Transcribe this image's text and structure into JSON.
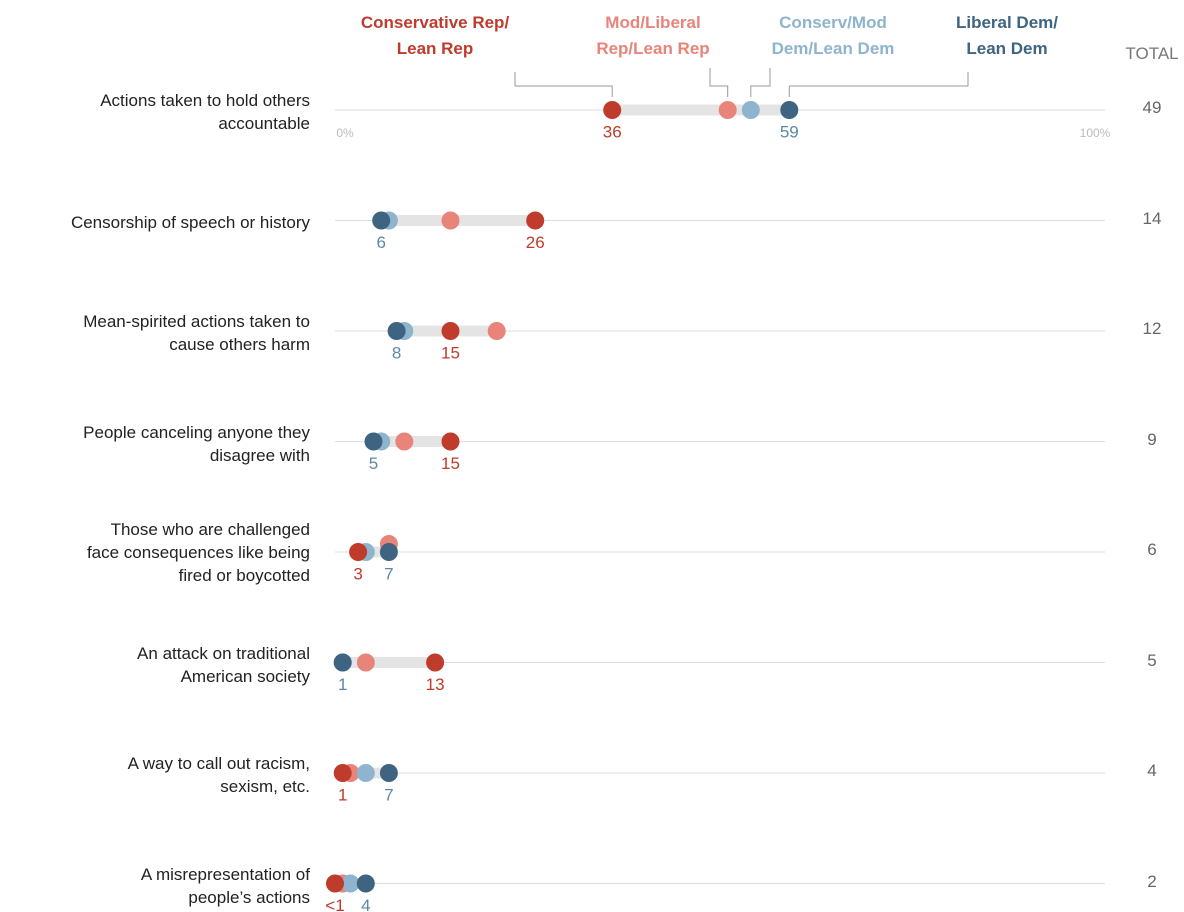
{
  "chart_data": {
    "type": "dot",
    "categories": [
      "Actions taken to hold others\naccountable",
      "Censorship of speech or history",
      "Mean-spirited actions taken to\ncause others harm",
      "People canceling anyone they\ndisagree with",
      "Those who are challenged\nface consequences like being\nfired or boycotted",
      "An attack on traditional\nAmerican society",
      "A way to call out racism,\nsexism, etc.",
      "A misrepresentation of\npeople’s actions"
    ],
    "series": [
      {
        "name": "Conservative Rep/\nLean Rep",
        "color": "#bf3b2c",
        "values": [
          36,
          26,
          15,
          15,
          3,
          13,
          1,
          0
        ],
        "value_labels": [
          "36",
          "26",
          "15",
          "15",
          "3",
          "13",
          "1",
          "<1"
        ]
      },
      {
        "name": "Mod/Liberal\nRep/Lean Rep",
        "color": "#e8847a",
        "values": [
          51,
          15,
          21,
          9,
          7,
          4,
          2,
          1
        ]
      },
      {
        "name": "Conserv/Mod\nDem/Lean Dem",
        "color": "#8fb4cd",
        "values": [
          54,
          7,
          9,
          6,
          4,
          1,
          4,
          2
        ]
      },
      {
        "name": "Liberal Dem/\nLean Dem",
        "color": "#3e6482",
        "values": [
          59,
          6,
          8,
          5,
          7,
          1,
          7,
          4
        ],
        "value_labels": [
          "59",
          "6",
          "8",
          "5",
          "7",
          "1",
          "7",
          "4"
        ]
      }
    ],
    "total_label": "TOTAL",
    "totals": [
      49,
      14,
      12,
      9,
      6,
      5,
      4,
      2
    ],
    "xlim": [
      0,
      100
    ],
    "xticks": [
      {
        "value": 0,
        "label": "0%"
      },
      {
        "value": 100,
        "label": "100%"
      }
    ]
  }
}
